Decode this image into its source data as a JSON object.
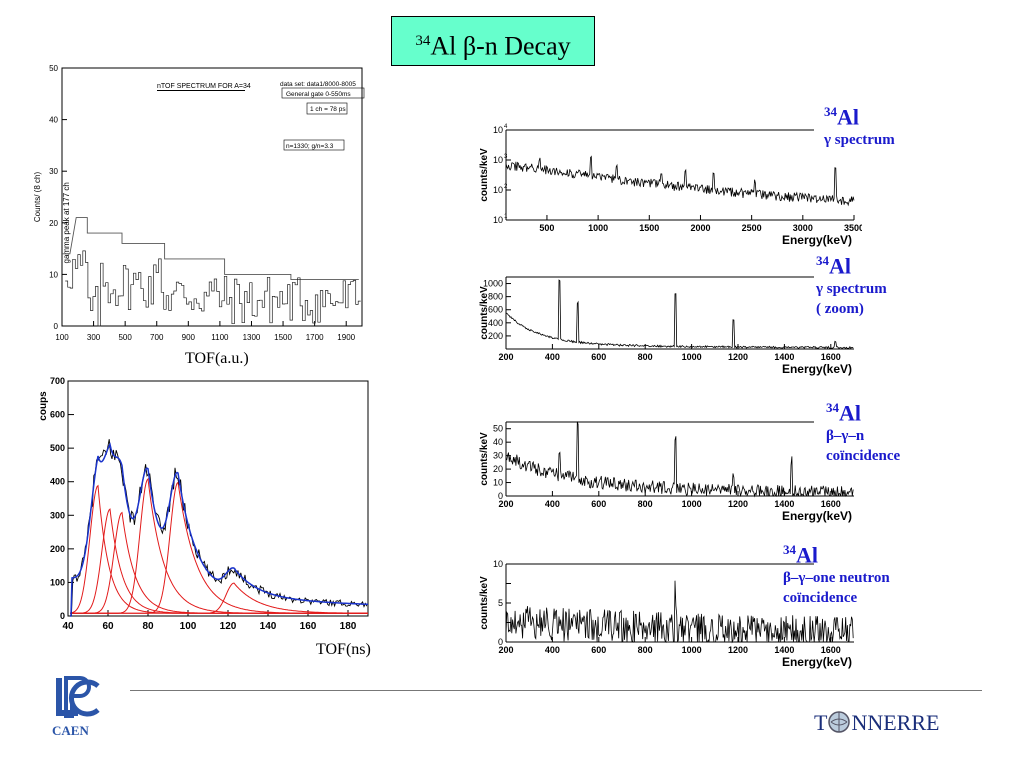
{
  "page": {
    "title_prefix": "34",
    "title_main": "Al β-n Decay",
    "footer_logo_left": "CAEN",
    "footer_logo_right": "NNERRE",
    "footer_logo_right_prefix": "T"
  },
  "chart_data": [
    {
      "type": "line",
      "id": "ntof",
      "caption": "TOF(a.u.)",
      "title": "nTOF SPECTRUM FOR A=34",
      "ylabel": "Counts/ (8 ch)",
      "annotations": [
        "data set: data1/8000-8005",
        "General gate 0-550ms",
        "1 ch = 78 ps",
        "n=1330; g/n=3.3",
        "gamma peak at 177 ch"
      ],
      "xlim": [
        100,
        2000
      ],
      "ylim": [
        0,
        50
      ],
      "x_ticks": [
        100,
        300,
        500,
        700,
        900,
        1100,
        1300,
        1500,
        1700,
        1900
      ],
      "y_ticks": [
        0,
        10,
        20,
        30,
        40,
        50
      ],
      "step_envelope": [
        [
          100,
          14
        ],
        [
          150,
          14
        ],
        [
          190,
          21
        ],
        [
          260,
          21
        ],
        [
          260,
          18
        ],
        [
          480,
          18
        ],
        [
          480,
          16
        ],
        [
          750,
          16
        ],
        [
          750,
          13
        ],
        [
          1130,
          13
        ],
        [
          1130,
          10
        ],
        [
          1550,
          10
        ],
        [
          1550,
          9
        ],
        [
          1980,
          9
        ]
      ]
    },
    {
      "type": "line",
      "id": "tof-fit",
      "caption": "TOF(ns)",
      "ylabel": "coups",
      "xlim": [
        40,
        190
      ],
      "ylim": [
        0,
        700
      ],
      "x_ticks": [
        40,
        60,
        80,
        100,
        120,
        140,
        160,
        180
      ],
      "y_ticks": [
        0,
        100,
        200,
        300,
        400,
        500,
        600,
        700
      ],
      "peaks": [
        {
          "center": 55,
          "height": 380
        },
        {
          "center": 61,
          "height": 310
        },
        {
          "center": 67,
          "height": 300
        },
        {
          "center": 80,
          "height": 400
        },
        {
          "center": 95,
          "height": 390
        },
        {
          "center": 123,
          "height": 90
        }
      ]
    },
    {
      "type": "line",
      "id": "gamma-spectrum",
      "ylabel": "counts/keV",
      "xlabel": "Energy(keV)",
      "label_prefix": "34",
      "label_main": "Al",
      "label_sub": "γ spectrum",
      "label_sub2": "",
      "xlim": [
        100,
        3500
      ],
      "ylim_log": [
        1,
        4
      ],
      "x_ticks": [
        500,
        1000,
        1500,
        2000,
        2500,
        3000,
        3500
      ],
      "y_ticks": [
        "10",
        "10",
        "10",
        "10"
      ],
      "y_exp": [
        "1",
        "2",
        "3",
        "4"
      ],
      "peaks_keV": [
        430,
        930,
        1180,
        1620,
        1850,
        2130,
        2530,
        3320
      ]
    },
    {
      "type": "line",
      "id": "gamma-zoom",
      "ylabel": "counts/keV",
      "xlabel": "Energy(keV)",
      "label_prefix": "34",
      "label_main": "Al",
      "label_sub": "γ spectrum",
      "label_sub2": "( zoom)",
      "xlim": [
        200,
        1700
      ],
      "ylim": [
        0,
        1100
      ],
      "x_ticks": [
        200,
        400,
        600,
        800,
        1000,
        1200,
        1400,
        1600
      ],
      "y_ticks": [
        200,
        400,
        600,
        800,
        1000
      ],
      "peaks_keV": [
        430,
        510,
        930,
        1180,
        1620
      ]
    },
    {
      "type": "line",
      "id": "bgn-coinc",
      "ylabel": "counts/keV",
      "xlabel": "Energy(keV)",
      "label_prefix": "34",
      "label_main": "Al",
      "label_sub": "β–γ–n",
      "label_sub2": "coïncidence",
      "xlim": [
        200,
        1700
      ],
      "ylim": [
        0,
        55
      ],
      "x_ticks": [
        200,
        400,
        600,
        800,
        1000,
        1200,
        1400,
        1600
      ],
      "y_ticks": [
        0,
        10,
        20,
        30,
        40,
        50
      ],
      "peaks_keV": [
        430,
        510,
        930,
        1180,
        1430
      ]
    },
    {
      "type": "line",
      "id": "bg-one-n",
      "ylabel": "counts/keV",
      "xlabel": "Energy(keV)",
      "label_prefix": "34",
      "label_main": "Al",
      "label_sub": "β–γ–one neutron",
      "label_sub2": "coïncidence",
      "xlim": [
        200,
        1700
      ],
      "ylim": [
        0,
        10
      ],
      "x_ticks": [
        200,
        400,
        600,
        800,
        1000,
        1200,
        1400,
        1600
      ],
      "y_ticks": [
        0,
        2.5,
        5,
        7.5,
        10
      ],
      "y_tick_labels": [
        "0",
        "",
        "5",
        "",
        "10"
      ],
      "peaks_keV": [
        930
      ]
    }
  ]
}
